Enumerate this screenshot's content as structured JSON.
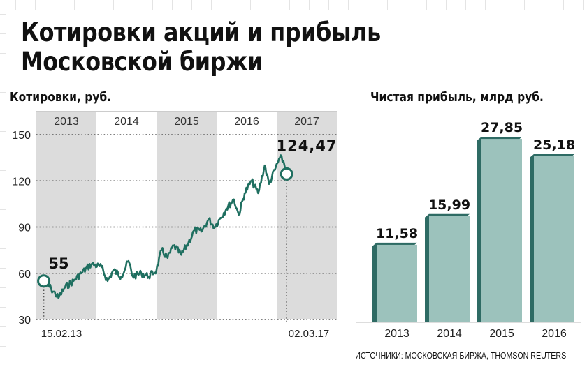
{
  "title_lines": [
    "Котировки акций и прибыль",
    "Московской биржи"
  ],
  "source": "ИСТОЧНИКИ: МОСКОВСКАЯ БИРЖА, THOMSON REUTERS",
  "colors": {
    "line": "#1f6f60",
    "band": "#dcdcdc",
    "bar_front": "#9cc2bc",
    "bar_side": "#2e6b64",
    "grid": "#555555"
  },
  "chart_data": [
    {
      "type": "line",
      "subtitle": "Котировки, руб.",
      "years": [
        "2013",
        "2014",
        "2015",
        "2016",
        "2017"
      ],
      "yticks": [
        30,
        60,
        90,
        120,
        150
      ],
      "ylim": [
        30,
        155
      ],
      "grid": "dotted horizontal",
      "x_start_label": "15.02.13",
      "x_end_label": "02.03.17",
      "start_value": 55,
      "end_value": 124.47,
      "start_label": "55",
      "end_label": "124,47",
      "x": [
        "2013-02-15",
        "2013-04-01",
        "2013-05-15",
        "2013-06-25",
        "2013-08-15",
        "2013-10-01",
        "2013-12-01",
        "2014-02-01",
        "2014-03-10",
        "2014-04-15",
        "2014-06-01",
        "2014-07-15",
        "2014-08-10",
        "2014-10-01",
        "2014-11-15",
        "2015-01-01",
        "2015-02-01",
        "2015-03-10",
        "2015-04-15",
        "2015-06-01",
        "2015-07-15",
        "2015-08-20",
        "2015-10-01",
        "2015-11-15",
        "2015-12-20",
        "2016-01-25",
        "2016-03-01",
        "2016-04-15",
        "2016-05-15",
        "2016-06-20",
        "2016-08-01",
        "2016-09-10",
        "2016-10-20",
        "2016-11-15",
        "2016-12-20",
        "2017-01-20",
        "2017-02-10",
        "2017-03-02"
      ],
      "y": [
        55,
        50,
        44,
        51,
        55,
        60,
        66,
        64,
        55,
        62,
        58,
        68,
        58,
        60,
        58,
        62,
        75,
        70,
        78,
        72,
        80,
        88,
        87,
        95,
        90,
        96,
        102,
        108,
        98,
        112,
        120,
        112,
        130,
        118,
        127,
        135,
        133,
        124.47
      ]
    },
    {
      "type": "bar",
      "subtitle": "Чистая прибыль, млрд руб.",
      "categories": [
        "2013",
        "2014",
        "2015",
        "2016"
      ],
      "values": [
        11.58,
        15.99,
        27.85,
        25.18
      ],
      "labels": [
        "11,58",
        "15,99",
        "27,85",
        "25,18"
      ],
      "ylim": [
        0,
        30
      ]
    }
  ]
}
